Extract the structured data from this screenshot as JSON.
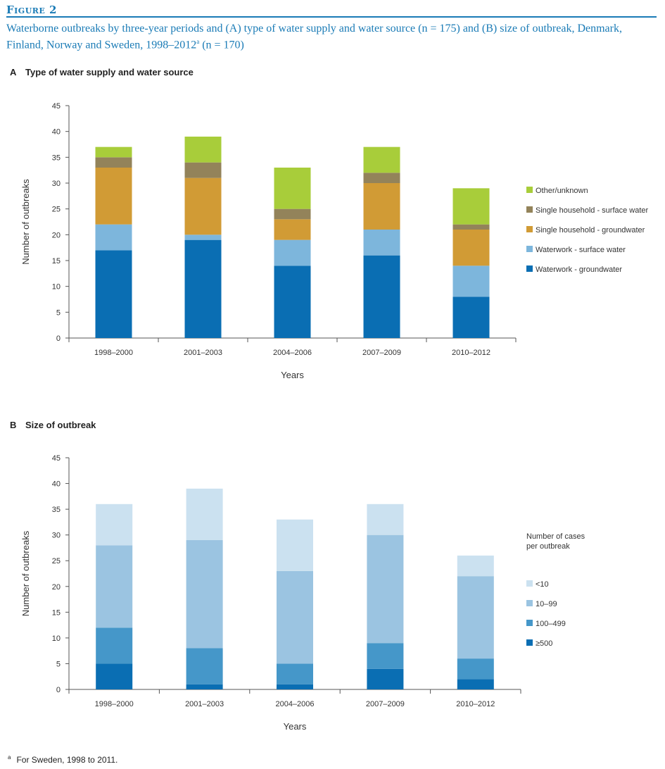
{
  "figure": {
    "label": "Figure 2",
    "caption_main": "Waterborne outbreaks by three-year periods and (A) type of water supply and water source (n = 175) and (B) size of outbreak, Denmark, Finland, Norway and Sweden, 1998–2012",
    "caption_sup": "a",
    "caption_end": " (n = 170)"
  },
  "footnote": {
    "marker": "a",
    "text": "For Sweden, 1998 to 2011."
  },
  "panels": [
    {
      "letter": "A",
      "title": "Type of water supply and water source",
      "legend_title": []
    },
    {
      "letter": "B",
      "title": "Size of outbreak",
      "legend_title": [
        "Number of cases",
        "per outbreak"
      ]
    }
  ],
  "chart_data": [
    {
      "type": "bar",
      "stacked": true,
      "title": "Type of water supply and water source",
      "xlabel": "Years",
      "ylabel": "Number of outbreaks",
      "ylim": [
        0,
        45
      ],
      "yticks": [
        0,
        5,
        10,
        15,
        20,
        25,
        30,
        35,
        40,
        45
      ],
      "categories": [
        "1998–2000",
        "2001–2003",
        "2004–2006",
        "2007–2009",
        "2010–2012"
      ],
      "legend_position": "right",
      "series": [
        {
          "name": "Waterwork - groundwater",
          "color": "#0a6eb3",
          "values": [
            17,
            19,
            14,
            16,
            8
          ]
        },
        {
          "name": "Waterwork - surface water",
          "color": "#7db6dc",
          "values": [
            5,
            1,
            5,
            5,
            6
          ]
        },
        {
          "name": "Single household - groundwater",
          "color": "#d19b35",
          "values": [
            11,
            11,
            4,
            9,
            7
          ]
        },
        {
          "name": "Single household -  surface water",
          "color": "#93835a",
          "values": [
            2,
            3,
            2,
            2,
            1
          ]
        },
        {
          "name": "Other/unknown",
          "color": "#a8cd3a",
          "values": [
            2,
            5,
            8,
            5,
            7
          ]
        }
      ]
    },
    {
      "type": "bar",
      "stacked": true,
      "title": "Size of outbreak",
      "xlabel": "Years",
      "ylabel": "Number of outbreaks",
      "ylim": [
        0,
        45
      ],
      "yticks": [
        0,
        5,
        10,
        15,
        20,
        25,
        30,
        35,
        40,
        45
      ],
      "categories": [
        "1998–2000",
        "2001–2003",
        "2004–2006",
        "2007–2009",
        "2010–2012"
      ],
      "legend_position": "right",
      "series": [
        {
          "name": "≥500",
          "color": "#0a6eb3",
          "values": [
            5,
            1,
            1,
            4,
            2
          ]
        },
        {
          "name": "100–499",
          "color": "#4597c9",
          "values": [
            7,
            7,
            4,
            5,
            4
          ]
        },
        {
          "name": "10–99",
          "color": "#9bc4e1",
          "values": [
            16,
            21,
            18,
            21,
            16
          ]
        },
        {
          "name": "<10",
          "color": "#cbe1f0",
          "values": [
            8,
            10,
            10,
            6,
            4
          ]
        }
      ]
    }
  ]
}
